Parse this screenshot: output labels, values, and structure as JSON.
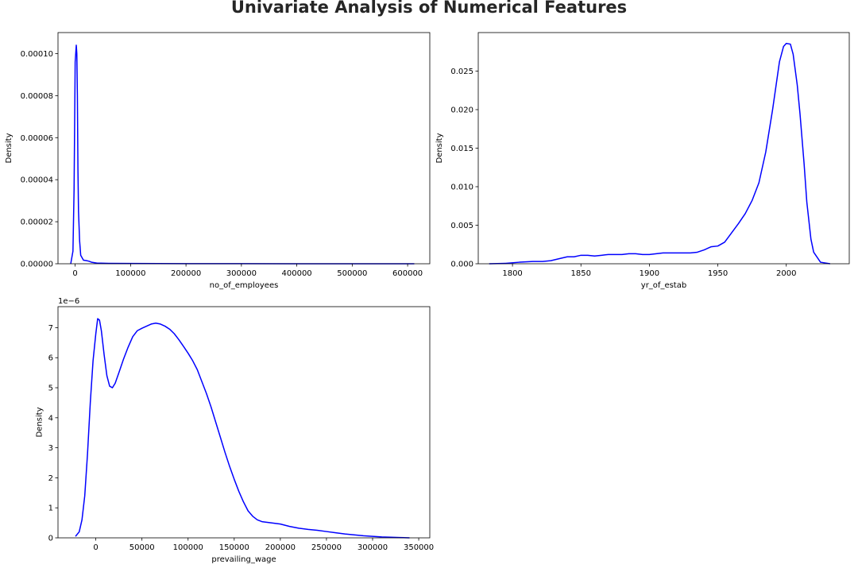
{
  "figure": {
    "title": "Univariate Analysis of Numerical Features",
    "line_color": "#0000ff"
  },
  "chart_data": [
    {
      "type": "line",
      "kind": "kde",
      "xlabel": "no_of_employees",
      "ylabel": "Density",
      "xlim": [
        -31000,
        640000
      ],
      "ylim": [
        0,
        0.00011
      ],
      "xticks": [
        0,
        100000,
        200000,
        300000,
        400000,
        500000,
        600000
      ],
      "xtick_labels": [
        "0",
        "100000",
        "200000",
        "300000",
        "400000",
        "500000",
        "600000"
      ],
      "yticks": [
        0,
        2e-05,
        4e-05,
        6e-05,
        8e-05,
        0.0001
      ],
      "ytick_labels": [
        "0.00000",
        "0.00002",
        "0.00004",
        "0.00006",
        "0.00008",
        "0.00010"
      ],
      "y_offset_label": "",
      "series": [
        {
          "x": [
            -8000,
            -4000,
            -2000,
            0,
            1000,
            2000,
            3000,
            4000,
            5000,
            6000,
            8000,
            10000,
            15000,
            20000,
            25000,
            30000,
            40000,
            60000,
            100000,
            150000,
            200000,
            300000,
            400000,
            500000,
            600000,
            612000
          ],
          "y": [
            0,
            6e-06,
            3.5e-05,
            9.6e-05,
            0.0001,
            0.000104,
            0.0001,
            8e-05,
            4.5e-05,
            2.5e-05,
            1.1e-05,
            4e-06,
            1.7e-06,
            1.5e-06,
            1.2e-06,
            7e-07,
            3e-07,
            2e-07,
            1.5e-07,
            1e-07,
            5e-08,
            3e-08,
            2e-08,
            2e-08,
            1e-08,
            0
          ]
        }
      ]
    },
    {
      "type": "line",
      "kind": "kde",
      "xlabel": "yr_of_estab",
      "ylabel": "Density",
      "xlim": [
        1775,
        1045
      ],
      "ylim": [
        0,
        0.03
      ],
      "xticks": [
        1800,
        1850,
        1900,
        1950,
        2000
      ],
      "xtick_labels": [
        "1800",
        "1850",
        "1900",
        "1950",
        "2000"
      ],
      "yticks": [
        0,
        0.005,
        0.01,
        0.015,
        0.02,
        0.025
      ],
      "ytick_labels": [
        "0.000",
        "0.005",
        "0.010",
        "0.015",
        "0.020",
        "0.025"
      ],
      "y_offset_label": "",
      "series": [
        {
          "x": [
            1783,
            1795,
            1805,
            1815,
            1822,
            1828,
            1835,
            1840,
            1845,
            1850,
            1855,
            1860,
            1865,
            1870,
            1875,
            1880,
            1885,
            1890,
            1895,
            1900,
            1905,
            1910,
            1915,
            1920,
            1925,
            1930,
            1935,
            1940,
            1945,
            1950,
            1955,
            1960,
            1965,
            1970,
            1975,
            1980,
            1985,
            1990,
            1995,
            1998,
            2000,
            2003,
            2005,
            2008,
            2010,
            2013,
            2015,
            2018,
            2020,
            2025,
            2032
          ],
          "y": [
            0,
            5e-05,
            0.0002,
            0.0003,
            0.0003,
            0.0004,
            0.0007,
            0.0009,
            0.0009,
            0.0011,
            0.0011,
            0.001,
            0.0011,
            0.0012,
            0.0012,
            0.0012,
            0.0013,
            0.0013,
            0.0012,
            0.0012,
            0.0013,
            0.0014,
            0.0014,
            0.0014,
            0.0014,
            0.0014,
            0.0015,
            0.0018,
            0.0022,
            0.0023,
            0.0028,
            0.004,
            0.0052,
            0.0065,
            0.0082,
            0.0105,
            0.0145,
            0.02,
            0.0262,
            0.0282,
            0.0286,
            0.0285,
            0.0272,
            0.0232,
            0.0195,
            0.013,
            0.008,
            0.0032,
            0.0015,
            0.0002,
            0
          ]
        }
      ]
    },
    {
      "type": "line",
      "kind": "kde",
      "xlabel": "prevailing_wage",
      "ylabel": "Density",
      "xlim": [
        -41000,
        362000
      ],
      "ylim": [
        0,
        7.7
      ],
      "xticks": [
        0,
        50000,
        100000,
        150000,
        200000,
        250000,
        300000,
        350000
      ],
      "xtick_labels": [
        "0",
        "50000",
        "100000",
        "150000",
        "200000",
        "250000",
        "300000",
        "350000"
      ],
      "yticks": [
        0,
        1,
        2,
        3,
        4,
        5,
        6,
        7
      ],
      "ytick_labels": [
        "0",
        "1",
        "2",
        "3",
        "4",
        "5",
        "6",
        "7"
      ],
      "y_offset_label": "1e−6",
      "series": [
        {
          "x": [
            -22000,
            -18000,
            -15000,
            -12000,
            -9000,
            -6000,
            -3000,
            0,
            2000,
            4000,
            6000,
            9000,
            12000,
            15000,
            18000,
            21000,
            25000,
            30000,
            35000,
            40000,
            45000,
            50000,
            55000,
            60000,
            65000,
            70000,
            75000,
            80000,
            85000,
            90000,
            95000,
            100000,
            105000,
            110000,
            115000,
            120000,
            125000,
            130000,
            135000,
            140000,
            145000,
            150000,
            155000,
            160000,
            165000,
            170000,
            175000,
            180000,
            185000,
            190000,
            195000,
            200000,
            210000,
            220000,
            230000,
            240000,
            250000,
            260000,
            270000,
            280000,
            290000,
            300000,
            310000,
            320000,
            330000,
            340000
          ],
          "y": [
            0.05,
            0.2,
            0.6,
            1.4,
            2.8,
            4.5,
            5.9,
            6.8,
            7.3,
            7.25,
            6.9,
            6.1,
            5.4,
            5.05,
            5.0,
            5.15,
            5.5,
            5.95,
            6.35,
            6.7,
            6.9,
            6.98,
            7.05,
            7.12,
            7.15,
            7.12,
            7.05,
            6.95,
            6.8,
            6.6,
            6.38,
            6.15,
            5.9,
            5.6,
            5.2,
            4.8,
            4.35,
            3.85,
            3.35,
            2.85,
            2.38,
            1.95,
            1.55,
            1.2,
            0.9,
            0.72,
            0.6,
            0.54,
            0.52,
            0.5,
            0.48,
            0.46,
            0.38,
            0.32,
            0.28,
            0.25,
            0.21,
            0.17,
            0.13,
            0.1,
            0.07,
            0.05,
            0.03,
            0.02,
            0.01,
            0.0
          ]
        }
      ]
    }
  ]
}
